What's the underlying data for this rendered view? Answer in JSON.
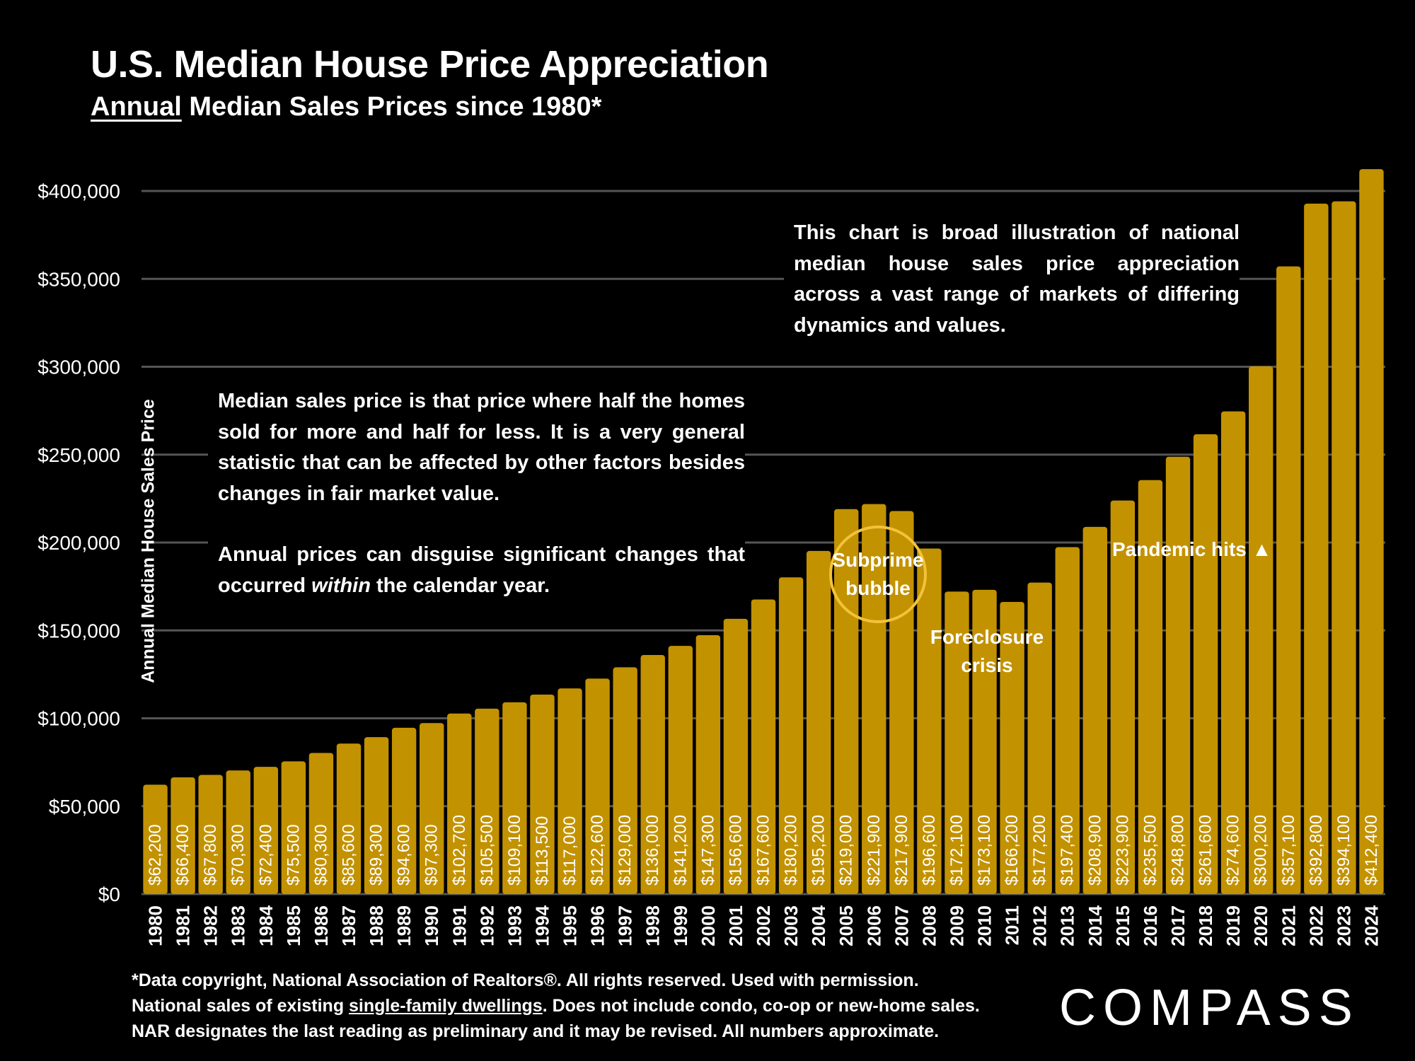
{
  "header": {
    "title": "U.S. Median House Price Appreciation",
    "subtitle_underlined": "Annual",
    "subtitle_rest": " Median Sales Prices since 1980*"
  },
  "colors": {
    "background": "#000000",
    "bar": "#C39200",
    "gridline": "#555555",
    "circle": "#F2C23A",
    "text": "#FFFFFF"
  },
  "notes": {
    "top": "This chart is broad illustration of national median house sales price appreciation across a vast range of markets of differing dynamics and values.",
    "left_p1": "Median sales price is that price where half the homes sold for more and half for less. It is a very general statistic that can be affected by other factors besides changes in fair market value.",
    "left_p2_a": "Annual prices can disguise significant changes that occurred ",
    "left_p2_em": "within",
    "left_p2_b": " the calendar year."
  },
  "annotations": {
    "subprime": "Subprime bubble",
    "foreclosure": "Foreclosure crisis",
    "pandemic": "Pandemic hits ▲"
  },
  "footer": {
    "line1": "*Data copyright, National Association of Realtors®. All rights reserved. Used with permission.",
    "line2_a": "National sales of existing ",
    "line2_u": "single-family dwellings",
    "line2_b": ". Does not include condo, co-op or new-home sales.",
    "line3": "NAR designates the last reading as preliminary and it may be revised. All numbers approximate."
  },
  "logo": "COMPASS",
  "chart_data": {
    "type": "bar",
    "title": "U.S. Median House Price Appreciation",
    "subtitle": "Annual Median Sales Prices since 1980*",
    "xlabel": "",
    "ylabel": "Annual Median House Sales Price",
    "ylim": [
      0,
      400000
    ],
    "yticks": [
      0,
      50000,
      100000,
      150000,
      200000,
      250000,
      300000,
      350000,
      400000
    ],
    "ytick_labels": [
      "$0",
      "$50,000",
      "$100,000",
      "$150,000",
      "$200,000",
      "$250,000",
      "$300,000",
      "$350,000",
      "$400,000"
    ],
    "grid": true,
    "legend": "none",
    "categories": [
      "1980",
      "1981",
      "1982",
      "1983",
      "1984",
      "1985",
      "1986",
      "1987",
      "1988",
      "1989",
      "1990",
      "1991",
      "1992",
      "1993",
      "1994",
      "1995",
      "1996",
      "1997",
      "1998",
      "1999",
      "2000",
      "2001",
      "2002",
      "2003",
      "2004",
      "2005",
      "2006",
      "2007",
      "2008",
      "2009",
      "2010",
      "2011",
      "2012",
      "2013",
      "2014",
      "2015",
      "2016",
      "2017",
      "2018",
      "2019",
      "2020",
      "2021",
      "2022",
      "2023",
      "2024"
    ],
    "values": [
      62200,
      66400,
      67800,
      70300,
      72400,
      75500,
      80300,
      85600,
      89300,
      94600,
      97300,
      102700,
      105500,
      109100,
      113500,
      117000,
      122600,
      129000,
      136000,
      141200,
      147300,
      156600,
      167600,
      180200,
      195200,
      219000,
      221900,
      217900,
      196600,
      172100,
      173100,
      166200,
      177200,
      197400,
      208900,
      223900,
      235500,
      248800,
      261600,
      274600,
      300200,
      357100,
      392800,
      394100,
      412400
    ],
    "data_labels": [
      "$62,200",
      "$66,400",
      "$67,800",
      "$70,300",
      "$72,400",
      "$75,500",
      "$80,300",
      "$85,600",
      "$89,300",
      "$94,600",
      "$97,300",
      "$102,700",
      "$105,500",
      "$109,100",
      "$113,500",
      "$117,000",
      "$122,600",
      "$129,000",
      "$136,000",
      "$141,200",
      "$147,300",
      "$156,600",
      "$167,600",
      "$180,200",
      "$195,200",
      "$219,000",
      "$221,900",
      "$217,900",
      "$196,600",
      "$172,100",
      "$173,100",
      "$166,200",
      "$177,200",
      "$197,400",
      "$208,900",
      "$223,900",
      "$235,500",
      "$248,800",
      "$261,600",
      "$274,600",
      "$300,200",
      "$357,100",
      "$392,800",
      "$394,100",
      "$412,400"
    ]
  }
}
